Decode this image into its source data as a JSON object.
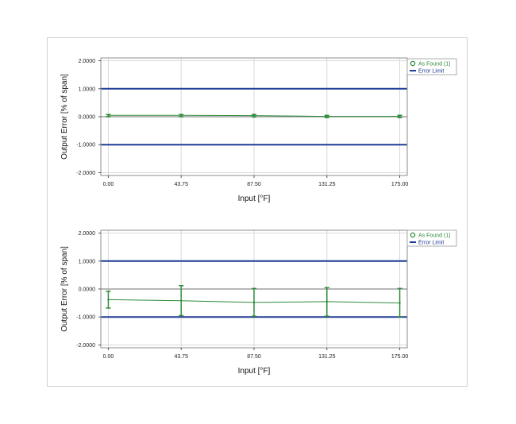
{
  "colors": {
    "series": "#2e8b3a",
    "limit": "#1f3b96",
    "zero_line": "#8c8c8c",
    "grid": "#d8d8d8",
    "plot_border": "#8c8c8c",
    "legend_text": "#2e8b3a"
  },
  "chart_data": [
    {
      "type": "line",
      "xlabel": "Input [°F]",
      "ylabel": "Output Error [% of span]",
      "x": [
        0.0,
        43.75,
        87.5,
        131.25,
        175.0
      ],
      "x_tick_labels": [
        "0.00",
        "43.75",
        "87.50",
        "131.25",
        "175.00"
      ],
      "y_tick_values": [
        2,
        1,
        0,
        -1,
        -2
      ],
      "y_tick_labels": [
        "2.0000",
        "1.0000",
        "0.0000",
        "-1.0000",
        "-2.0000"
      ],
      "xlim": [
        -4.5,
        179.5
      ],
      "ylim": [
        -2.1,
        2.1
      ],
      "grid": true,
      "legend_position": "right",
      "error_limits": {
        "upper": 1.0,
        "lower": -1.0
      },
      "series": [
        {
          "name": "As Found (1)",
          "values": [
            0.05,
            0.05,
            0.04,
            0.01,
            0.01
          ],
          "error_low": [
            0.0,
            0.0,
            -0.01,
            -0.03,
            -0.03
          ],
          "error_high": [
            0.08,
            0.08,
            0.08,
            0.05,
            0.05
          ]
        }
      ],
      "legend": [
        {
          "label": "As Found (1)",
          "symbol": "circle"
        },
        {
          "label": "Error Limit",
          "symbol": "line"
        }
      ]
    },
    {
      "type": "line",
      "xlabel": "Input [°F]",
      "ylabel": "Output Error [% of span]",
      "x": [
        0.0,
        43.75,
        87.5,
        131.25,
        175.0
      ],
      "x_tick_labels": [
        "0.00",
        "43.75",
        "87.50",
        "131.25",
        "175.00"
      ],
      "y_tick_values": [
        2,
        1,
        0,
        -1,
        -2
      ],
      "y_tick_labels": [
        "2.0000",
        "1.0000",
        "0.0000",
        "-1.0000",
        "-2.0000"
      ],
      "xlim": [
        -4.5,
        179.5
      ],
      "ylim": [
        -2.1,
        2.1
      ],
      "grid": true,
      "legend_position": "right",
      "error_limits": {
        "upper": 1.0,
        "lower": -1.0
      },
      "series": [
        {
          "name": "As Found (1)",
          "values": [
            -0.38,
            -0.42,
            -0.48,
            -0.45,
            -0.5
          ],
          "error_low": [
            -0.68,
            -0.95,
            -0.97,
            -0.97,
            -0.99
          ],
          "error_high": [
            -0.08,
            0.12,
            0.02,
            0.05,
            0.02
          ]
        }
      ],
      "legend": [
        {
          "label": "As Found (1)",
          "symbol": "circle"
        },
        {
          "label": "Error Limit",
          "symbol": "line"
        }
      ]
    }
  ]
}
